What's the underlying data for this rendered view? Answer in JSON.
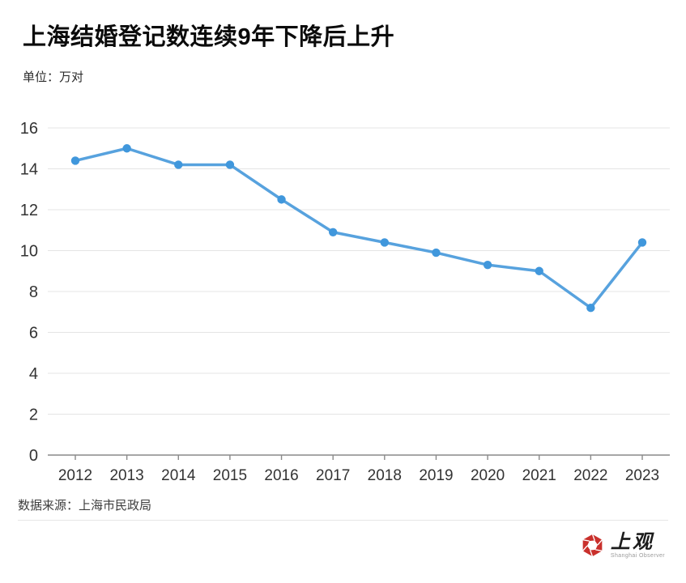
{
  "header": {
    "title": "上海结婚登记数连续9年下降后上升",
    "unit_label": "单位：万对"
  },
  "chart_data": {
    "type": "line",
    "categories": [
      "2012",
      "2013",
      "2014",
      "2015",
      "2016",
      "2017",
      "2018",
      "2019",
      "2020",
      "2021",
      "2022",
      "2023"
    ],
    "values": [
      14.4,
      15.0,
      14.2,
      14.2,
      12.5,
      10.9,
      10.4,
      9.9,
      9.3,
      9.0,
      7.2,
      10.4
    ],
    "title": "上海结婚登记数连续9年下降后上升",
    "unit": "万对",
    "xlabel": "",
    "ylabel": "",
    "ylim": [
      0,
      16
    ],
    "ytick_step": 2,
    "grid": true,
    "legend": "none",
    "line_color": "#57a2de",
    "marker_color": "#4097dc",
    "grid_color": "#e4e4e4",
    "axis_color": "#8a8a8a",
    "tick_label_color": "#333333"
  },
  "footer": {
    "source": "数据来源：上海市民政局"
  },
  "logo": {
    "name": "上观",
    "subtext": "Shanghai Observer",
    "color": "#c9302c"
  }
}
